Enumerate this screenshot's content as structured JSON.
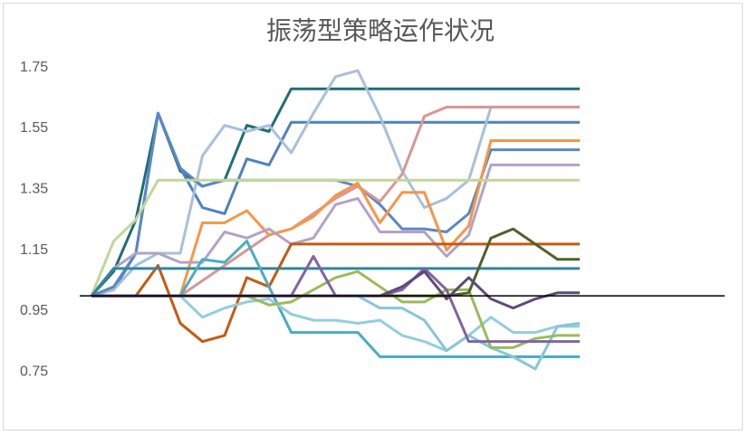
{
  "chart_data": {
    "type": "line",
    "title": "振荡型策略运作状况",
    "categories": [
      null,
      null,
      null,
      null,
      null,
      null,
      null,
      null,
      null,
      null,
      null,
      null,
      null,
      null,
      null,
      null,
      null,
      null,
      null,
      null,
      null,
      null,
      null
    ],
    "ylim": [
      0.65,
      1.85
    ],
    "yticks": [
      0.75,
      0.95,
      1.15,
      1.35,
      1.55,
      1.75
    ],
    "xaxis_cross": 1,
    "series": [
      {
        "color": "#1f6e78",
        "values": [
          1.0,
          1.08,
          1.25,
          1.6,
          1.41,
          1.36,
          1.38,
          1.56,
          1.54,
          1.68,
          1.68,
          1.68,
          1.68,
          1.68,
          1.68,
          1.68,
          1.68,
          1.68,
          1.68,
          1.68,
          1.68,
          1.68,
          1.68
        ]
      },
      {
        "color": "#4f81bd",
        "values": [
          1.0,
          1.02,
          1.14,
          1.6,
          1.42,
          1.29,
          1.27,
          1.45,
          1.43,
          1.57,
          1.57,
          1.57,
          1.57,
          1.57,
          1.57,
          1.57,
          1.57,
          1.57,
          1.57,
          1.57,
          1.57,
          1.57,
          1.57
        ]
      },
      {
        "color": "#a7c0dc",
        "values": [
          1.0,
          1.02,
          1.1,
          1.14,
          1.14,
          1.46,
          1.56,
          1.54,
          1.56,
          1.47,
          1.6,
          1.72,
          1.74,
          1.59,
          1.41,
          1.29,
          1.32,
          1.38,
          1.62,
          1.62,
          1.62,
          1.62,
          1.62
        ]
      },
      {
        "color": "#5b87c4",
        "values": [
          1.0,
          1.03,
          1.14,
          1.6,
          1.42,
          1.36,
          1.38,
          1.38,
          1.38,
          1.38,
          1.38,
          1.38,
          1.36,
          1.3,
          1.22,
          1.22,
          1.21,
          1.27,
          1.48,
          1.48,
          1.48,
          1.48,
          1.48
        ]
      },
      {
        "color": "#d99694",
        "values": [
          1.0,
          1.0,
          1.0,
          1.0,
          1.0,
          1.05,
          1.1,
          1.15,
          1.2,
          1.22,
          1.27,
          1.32,
          1.36,
          1.31,
          1.4,
          1.59,
          1.62,
          1.62,
          1.62,
          1.62,
          1.62,
          1.62,
          1.62
        ]
      },
      {
        "color": "#f79646",
        "values": [
          1.0,
          1.0,
          1.0,
          1.0,
          1.0,
          1.24,
          1.24,
          1.28,
          1.2,
          1.22,
          1.26,
          1.33,
          1.37,
          1.24,
          1.34,
          1.34,
          1.15,
          1.23,
          1.51,
          1.51,
          1.51,
          1.51,
          1.51
        ]
      },
      {
        "color": "#b3a2c7",
        "values": [
          1.0,
          1.09,
          1.14,
          1.14,
          1.11,
          1.11,
          1.21,
          1.19,
          1.22,
          1.17,
          1.19,
          1.3,
          1.32,
          1.21,
          1.21,
          1.21,
          1.13,
          1.2,
          1.43,
          1.43,
          1.43,
          1.43,
          1.43
        ]
      },
      {
        "color": "#c3d69b",
        "values": [
          1.0,
          1.18,
          1.25,
          1.38,
          1.38,
          1.38,
          1.38,
          1.38,
          1.38,
          1.38,
          1.38,
          1.38,
          1.38,
          1.38,
          1.38,
          1.38,
          1.38,
          1.38,
          1.38,
          1.38,
          1.38,
          1.38,
          1.38
        ]
      },
      {
        "color": "#c55a11",
        "values": [
          1.0,
          1.0,
          1.0,
          1.1,
          0.91,
          0.85,
          0.87,
          1.06,
          1.03,
          1.17,
          1.17,
          1.17,
          1.17,
          1.17,
          1.17,
          1.17,
          1.17,
          1.17,
          1.17,
          1.17,
          1.17,
          1.17,
          1.17
        ]
      },
      {
        "color": "#31859c",
        "values": [
          1.0,
          1.09,
          1.09,
          1.09,
          1.09,
          1.09,
          1.09,
          1.09,
          1.09,
          1.09,
          1.09,
          1.09,
          1.09,
          1.09,
          1.09,
          1.09,
          1.09,
          1.09,
          1.09,
          1.09,
          1.09,
          1.09,
          1.09
        ]
      },
      {
        "color": "#4bacc6",
        "values": [
          1.0,
          1.0,
          1.0,
          1.0,
          1.0,
          1.12,
          1.11,
          1.18,
          1.03,
          0.88,
          0.88,
          0.88,
          0.88,
          0.8,
          0.8,
          0.8,
          0.8,
          0.8,
          0.8,
          0.8,
          0.8,
          0.8,
          0.8
        ]
      },
      {
        "color": "#93cddd",
        "values": [
          1.0,
          1.0,
          1.0,
          1.0,
          1.0,
          0.93,
          0.96,
          0.98,
          0.99,
          0.94,
          0.92,
          0.92,
          0.91,
          0.92,
          0.87,
          0.85,
          0.82,
          0.87,
          0.93,
          0.88,
          0.88,
          0.9,
          0.9
        ]
      },
      {
        "color": "#86c6d9",
        "values": [
          1.0,
          1.0,
          1.0,
          1.0,
          1.0,
          1.0,
          1.0,
          1.0,
          1.0,
          1.0,
          1.0,
          1.0,
          1.0,
          0.96,
          0.96,
          0.92,
          0.82,
          0.87,
          0.83,
          0.8,
          0.76,
          0.9,
          0.91
        ]
      },
      {
        "color": "#9bbb59",
        "values": [
          1.0,
          1.0,
          1.0,
          1.0,
          1.0,
          1.0,
          1.0,
          1.0,
          0.97,
          0.98,
          1.02,
          1.06,
          1.08,
          1.03,
          0.98,
          0.98,
          1.02,
          1.02,
          0.83,
          0.83,
          0.86,
          0.87,
          0.87
        ]
      },
      {
        "color": "#8064a2",
        "values": [
          1.0,
          1.0,
          1.0,
          1.0,
          1.0,
          1.0,
          1.0,
          1.0,
          1.0,
          1.0,
          1.13,
          1.0,
          1.0,
          1.0,
          1.02,
          1.09,
          1.02,
          0.85,
          0.85,
          0.85,
          0.85,
          0.85,
          0.85
        ]
      },
      {
        "color": "#4f6228",
        "values": [
          1.0,
          1.0,
          1.0,
          1.0,
          1.0,
          1.0,
          1.0,
          1.0,
          1.0,
          1.0,
          1.0,
          1.0,
          1.0,
          1.0,
          1.0,
          1.0,
          1.0,
          1.01,
          1.19,
          1.22,
          1.17,
          1.12,
          1.12
        ]
      },
      {
        "color": "#5f497a",
        "values": [
          1.0,
          1.0,
          1.0,
          1.0,
          1.0,
          1.0,
          1.0,
          1.0,
          1.0,
          1.0,
          1.0,
          1.0,
          1.0,
          1.0,
          1.03,
          1.08,
          0.99,
          1.06,
          0.99,
          0.96,
          0.99,
          1.01,
          1.01
        ]
      }
    ]
  }
}
